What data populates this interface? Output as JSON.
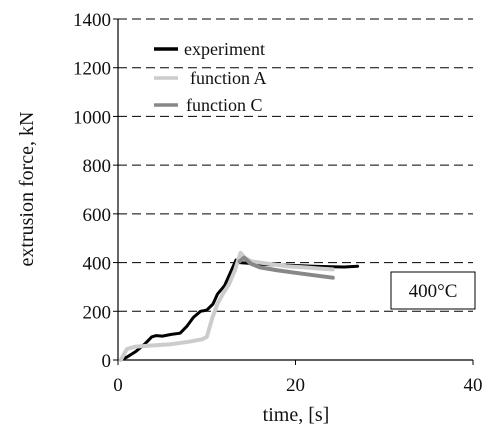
{
  "chart_data": {
    "type": "line",
    "title": "",
    "xlabel": "time, [s]",
    "ylabel": "extrusion force, kN",
    "xlim": [
      0,
      40
    ],
    "ylim": [
      0,
      1400
    ],
    "x_ticks": [
      0,
      20,
      40
    ],
    "y_ticks": [
      0,
      200,
      400,
      600,
      800,
      1000,
      1200,
      1400
    ],
    "grid": "horizontal dashed",
    "legend_position": "top-left",
    "annotation": "400°C",
    "series": [
      {
        "name": "experiment",
        "color": "#000000",
        "x": [
          0.3,
          1.0,
          2.0,
          3.0,
          3.8,
          4.3,
          5.0,
          6.0,
          7.0,
          7.8,
          8.5,
          9.3,
          10.0,
          10.7,
          11.2,
          12.0,
          12.8,
          13.3,
          13.7,
          14.5,
          16,
          18,
          20,
          22,
          24,
          25.5,
          27
        ],
        "y": [
          0,
          12,
          35,
          65,
          95,
          100,
          98,
          105,
          110,
          140,
          175,
          200,
          205,
          230,
          270,
          305,
          370,
          410,
          400,
          398,
          393,
          390,
          388,
          385,
          383,
          382,
          385
        ]
      },
      {
        "name": "function A",
        "color": "#cccccc",
        "x": [
          0.3,
          1.0,
          2.0,
          4.0,
          6.0,
          8.0,
          9.5,
          10.0,
          10.6,
          11.2,
          11.8,
          12.5,
          13.2,
          13.8,
          14.3,
          15,
          17,
          19,
          21,
          23,
          24.2
        ],
        "y": [
          0,
          45,
          55,
          60,
          65,
          75,
          85,
          95,
          170,
          230,
          270,
          310,
          370,
          440,
          420,
          405,
          395,
          385,
          380,
          375,
          372
        ]
      },
      {
        "name": "function C",
        "color": "#888888",
        "x": [
          13.7,
          14.2,
          15,
          16,
          18,
          20,
          22,
          24.2
        ],
        "y": [
          405,
          420,
          395,
          380,
          368,
          358,
          348,
          338
        ]
      }
    ]
  }
}
